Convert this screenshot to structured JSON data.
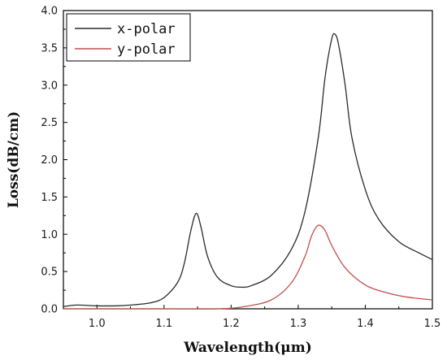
{
  "chart_data": {
    "type": "line",
    "xlabel": "Wavelength(μm)",
    "ylabel": "Loss(dB/cm)",
    "xlim": [
      0.95,
      1.5
    ],
    "ylim": [
      0.0,
      4.0
    ],
    "x_ticks": [
      "1.0",
      "1.1",
      "1.2",
      "1.3",
      "1.4",
      "1.5"
    ],
    "y_ticks": [
      "0.0",
      "0.5",
      "1.0",
      "1.5",
      "2.0",
      "2.5",
      "3.0",
      "3.5",
      "4.0"
    ],
    "legend_position": "top-left",
    "grid": false,
    "series": [
      {
        "name": "x-polar",
        "color": "#2b2b2b",
        "points": [
          [
            0.95,
            0.03
          ],
          [
            0.97,
            0.05
          ],
          [
            1.0,
            0.04
          ],
          [
            1.03,
            0.04
          ],
          [
            1.05,
            0.05
          ],
          [
            1.08,
            0.08
          ],
          [
            1.1,
            0.15
          ],
          [
            1.12,
            0.35
          ],
          [
            1.13,
            0.6
          ],
          [
            1.14,
            1.05
          ],
          [
            1.148,
            1.28
          ],
          [
            1.155,
            1.1
          ],
          [
            1.165,
            0.7
          ],
          [
            1.18,
            0.42
          ],
          [
            1.2,
            0.31
          ],
          [
            1.215,
            0.29
          ],
          [
            1.23,
            0.31
          ],
          [
            1.26,
            0.45
          ],
          [
            1.29,
            0.8
          ],
          [
            1.31,
            1.3
          ],
          [
            1.33,
            2.3
          ],
          [
            1.34,
            3.1
          ],
          [
            1.35,
            3.62
          ],
          [
            1.355,
            3.68
          ],
          [
            1.36,
            3.55
          ],
          [
            1.37,
            3.0
          ],
          [
            1.38,
            2.3
          ],
          [
            1.4,
            1.6
          ],
          [
            1.42,
            1.2
          ],
          [
            1.45,
            0.9
          ],
          [
            1.48,
            0.75
          ],
          [
            1.5,
            0.66
          ]
        ]
      },
      {
        "name": "y-polar",
        "color": "#c0504d",
        "points": [
          [
            0.95,
            0.0
          ],
          [
            1.0,
            0.0
          ],
          [
            1.1,
            0.0
          ],
          [
            1.18,
            0.0
          ],
          [
            1.22,
            0.03
          ],
          [
            1.26,
            0.12
          ],
          [
            1.29,
            0.35
          ],
          [
            1.31,
            0.7
          ],
          [
            1.32,
            0.98
          ],
          [
            1.33,
            1.12
          ],
          [
            1.34,
            1.05
          ],
          [
            1.35,
            0.85
          ],
          [
            1.37,
            0.55
          ],
          [
            1.4,
            0.32
          ],
          [
            1.43,
            0.22
          ],
          [
            1.46,
            0.16
          ],
          [
            1.5,
            0.12
          ]
        ]
      }
    ]
  }
}
